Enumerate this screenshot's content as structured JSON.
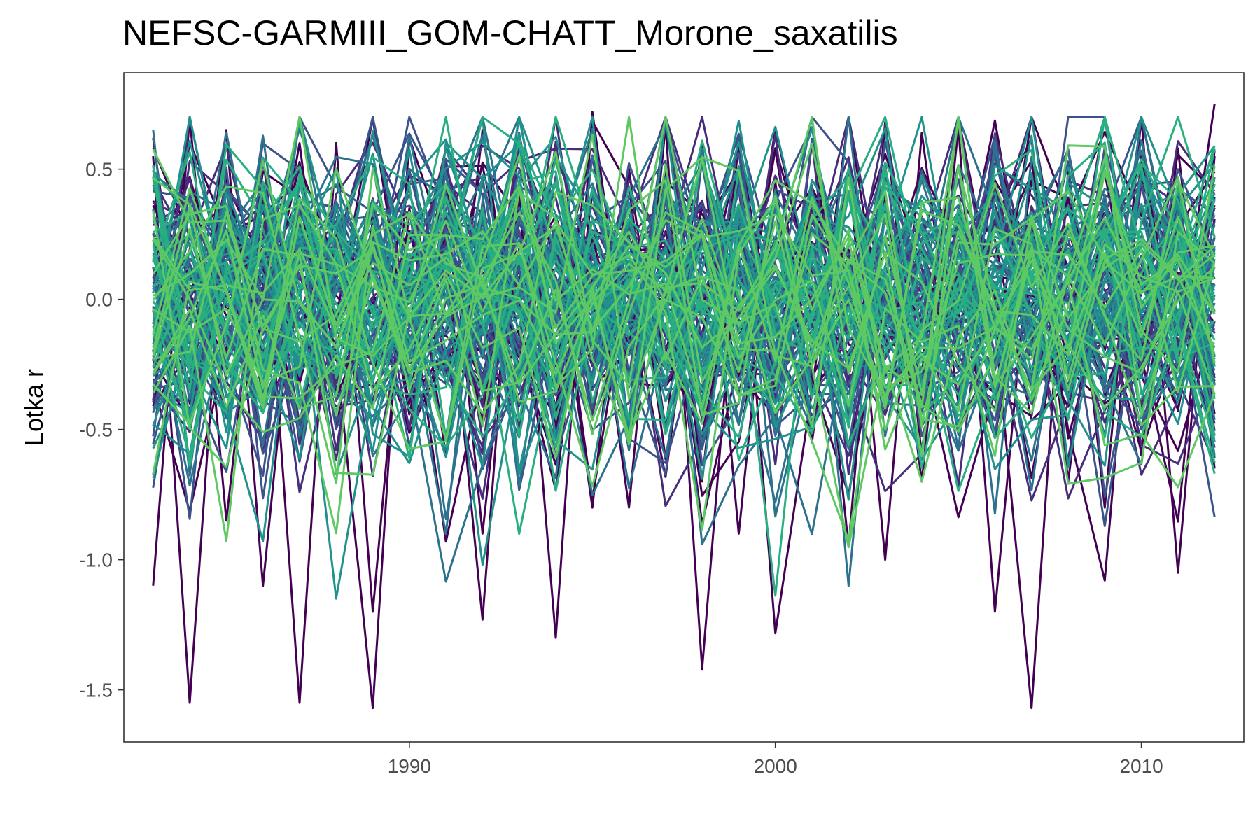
{
  "chart_data": {
    "type": "line",
    "title": "NEFSC-GARMIII_GOM-CHATT_Morone_saxatilis",
    "xlabel": "",
    "ylabel": "Lotka r",
    "xlim": [
      1982.2,
      2012.8
    ],
    "ylim": [
      -1.7,
      0.87
    ],
    "x_ticks": [
      1990,
      2000,
      2010
    ],
    "x_tick_labels": [
      "1990",
      "2000",
      "2010"
    ],
    "y_ticks": [
      0.5,
      0.0,
      -0.5,
      -1.0,
      -1.5
    ],
    "y_tick_labels": [
      "0.5",
      "0.0",
      "-0.5",
      "-1.0",
      "-1.5"
    ],
    "x": [
      1983,
      1984,
      1985,
      1986,
      1987,
      1988,
      1989,
      1990,
      1991,
      1992,
      1993,
      1994,
      1995,
      1996,
      1997,
      1998,
      1999,
      2000,
      2001,
      2002,
      2003,
      2004,
      2005,
      2006,
      2007,
      2008,
      2009,
      2010,
      2011,
      2012
    ],
    "series_count": 130,
    "palette": [
      "#440154",
      "#472d7b",
      "#3b528b",
      "#2c728e",
      "#21918c",
      "#28ae80",
      "#5ec962"
    ],
    "legend": "none",
    "grid": false,
    "series_example": [
      {
        "values": [
          0.55,
          -1.55,
          0.45,
          -0.2,
          0.6,
          -0.5,
          0.3,
          -0.4,
          0.5,
          -0.9,
          0.4,
          -1.3,
          0.72,
          -0.3,
          0.5,
          -0.7,
          0.6,
          -0.2,
          0.4,
          -0.95,
          0.68,
          -0.6,
          0.3,
          -0.1,
          -1.57,
          0.5,
          -0.8,
          0.7,
          -1.05,
          0.55
        ]
      },
      {
        "values": [
          -1.1,
          0.7,
          -0.85,
          0.4,
          -1.55,
          0.6,
          -1.2,
          0.35,
          -0.6,
          0.65,
          -0.3,
          0.2,
          -0.8,
          0.5,
          -0.5,
          0.6,
          -0.9,
          0.45,
          -0.55,
          0.5,
          -1.0,
          0.64,
          -0.4,
          0.3,
          0.62,
          -0.7,
          0.4,
          -0.6,
          0.58,
          -0.65
        ]
      },
      {
        "values": [
          0.62,
          -0.4,
          0.65,
          -1.1,
          0.3,
          -0.2,
          -1.57,
          0.62,
          0.2,
          -1.23,
          0.64,
          -0.5,
          0.2,
          -0.8,
          0.67,
          -1.42,
          0.3,
          -0.5,
          0.6,
          -0.3,
          0.4,
          -0.7,
          0.66,
          -1.2,
          0.3,
          -0.5,
          -1.08,
          0.55,
          -0.2,
          0.75
        ]
      }
    ]
  }
}
